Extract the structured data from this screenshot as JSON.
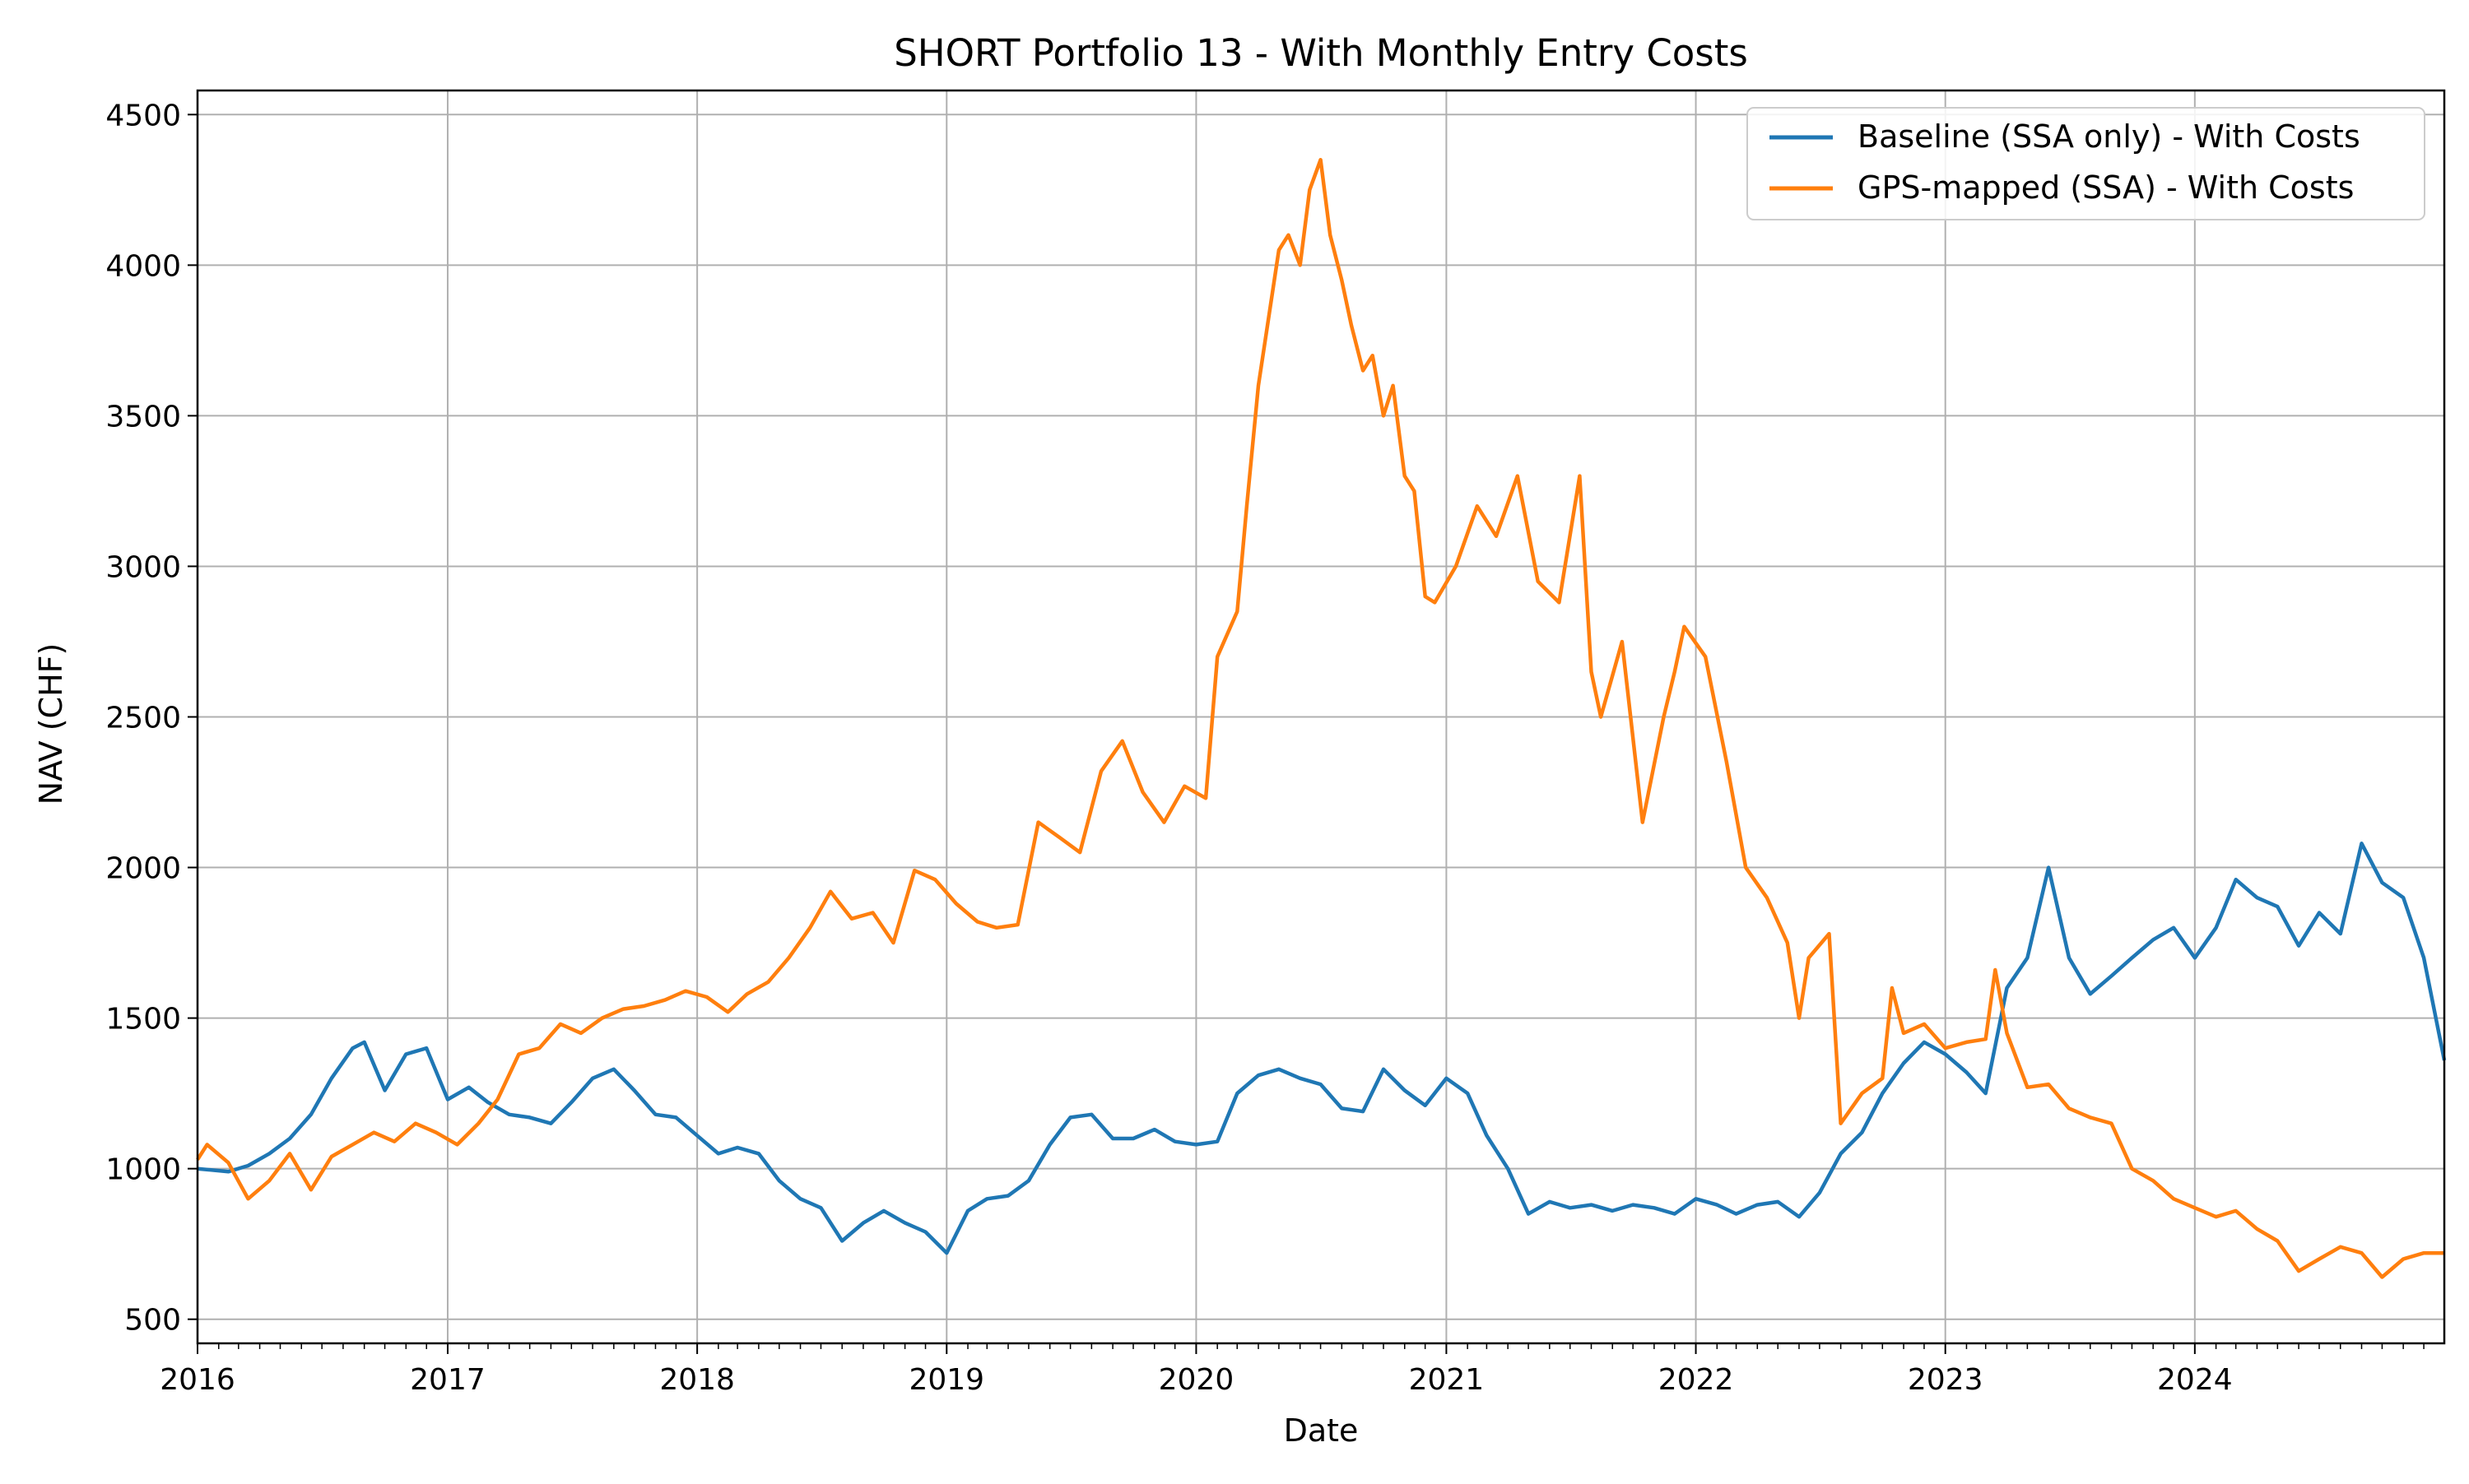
{
  "chart_data": {
    "type": "line",
    "title": "SHORT Portfolio 13 - With Monthly Entry Costs",
    "xlabel": "Date",
    "ylabel": "NAV (CHF)",
    "xlim": [
      "2016-01-01",
      "2024-12-31"
    ],
    "ylim": [
      420,
      4580
    ],
    "x_ticks": [
      "2016",
      "2017",
      "2018",
      "2019",
      "2020",
      "2021",
      "2022",
      "2023",
      "2024"
    ],
    "y_ticks": [
      500,
      1000,
      1500,
      2000,
      2500,
      3000,
      3500,
      4000,
      4500
    ],
    "grid": true,
    "legend_position": "top-right",
    "series": [
      {
        "name": "Baseline (SSA only) - With Costs",
        "color": "#1f77b4",
        "points": [
          [
            "2016-01-01",
            1000
          ],
          [
            "2016-02-15",
            990
          ],
          [
            "2016-03-15",
            1010
          ],
          [
            "2016-04-15",
            1050
          ],
          [
            "2016-05-15",
            1100
          ],
          [
            "2016-06-15",
            1180
          ],
          [
            "2016-07-15",
            1300
          ],
          [
            "2016-08-15",
            1400
          ],
          [
            "2016-09-01",
            1420
          ],
          [
            "2016-10-01",
            1260
          ],
          [
            "2016-11-01",
            1380
          ],
          [
            "2016-12-01",
            1400
          ],
          [
            "2017-01-01",
            1230
          ],
          [
            "2017-02-01",
            1270
          ],
          [
            "2017-03-01",
            1220
          ],
          [
            "2017-04-01",
            1180
          ],
          [
            "2017-05-01",
            1170
          ],
          [
            "2017-06-01",
            1150
          ],
          [
            "2017-07-01",
            1220
          ],
          [
            "2017-08-01",
            1300
          ],
          [
            "2017-09-01",
            1330
          ],
          [
            "2017-10-01",
            1260
          ],
          [
            "2017-11-01",
            1180
          ],
          [
            "2017-12-01",
            1170
          ],
          [
            "2018-01-01",
            1110
          ],
          [
            "2018-02-01",
            1050
          ],
          [
            "2018-03-01",
            1070
          ],
          [
            "2018-04-01",
            1050
          ],
          [
            "2018-05-01",
            960
          ],
          [
            "2018-06-01",
            900
          ],
          [
            "2018-07-01",
            870
          ],
          [
            "2018-08-01",
            760
          ],
          [
            "2018-09-01",
            820
          ],
          [
            "2018-10-01",
            860
          ],
          [
            "2018-11-01",
            820
          ],
          [
            "2018-12-01",
            790
          ],
          [
            "2019-01-01",
            720
          ],
          [
            "2019-02-01",
            860
          ],
          [
            "2019-03-01",
            900
          ],
          [
            "2019-04-01",
            910
          ],
          [
            "2019-05-01",
            960
          ],
          [
            "2019-06-01",
            1080
          ],
          [
            "2019-07-01",
            1170
          ],
          [
            "2019-08-01",
            1180
          ],
          [
            "2019-09-01",
            1100
          ],
          [
            "2019-10-01",
            1100
          ],
          [
            "2019-11-01",
            1130
          ],
          [
            "2019-12-01",
            1090
          ],
          [
            "2020-01-01",
            1080
          ],
          [
            "2020-02-01",
            1090
          ],
          [
            "2020-03-01",
            1250
          ],
          [
            "2020-04-01",
            1310
          ],
          [
            "2020-05-01",
            1330
          ],
          [
            "2020-06-01",
            1300
          ],
          [
            "2020-07-01",
            1280
          ],
          [
            "2020-08-01",
            1200
          ],
          [
            "2020-09-01",
            1190
          ],
          [
            "2020-10-01",
            1330
          ],
          [
            "2020-11-01",
            1260
          ],
          [
            "2020-12-01",
            1210
          ],
          [
            "2021-01-01",
            1300
          ],
          [
            "2021-02-01",
            1250
          ],
          [
            "2021-03-01",
            1110
          ],
          [
            "2021-04-01",
            1000
          ],
          [
            "2021-05-01",
            850
          ],
          [
            "2021-06-01",
            890
          ],
          [
            "2021-07-01",
            870
          ],
          [
            "2021-08-01",
            880
          ],
          [
            "2021-09-01",
            860
          ],
          [
            "2021-10-01",
            880
          ],
          [
            "2021-11-01",
            870
          ],
          [
            "2021-12-01",
            850
          ],
          [
            "2022-01-01",
            900
          ],
          [
            "2022-02-01",
            880
          ],
          [
            "2022-03-01",
            850
          ],
          [
            "2022-04-01",
            880
          ],
          [
            "2022-05-01",
            890
          ],
          [
            "2022-06-01",
            840
          ],
          [
            "2022-07-01",
            920
          ],
          [
            "2022-08-01",
            1050
          ],
          [
            "2022-09-01",
            1120
          ],
          [
            "2022-10-01",
            1250
          ],
          [
            "2022-11-01",
            1350
          ],
          [
            "2022-12-01",
            1420
          ],
          [
            "2023-01-01",
            1380
          ],
          [
            "2023-02-01",
            1320
          ],
          [
            "2023-03-01",
            1250
          ],
          [
            "2023-04-01",
            1600
          ],
          [
            "2023-05-01",
            1700
          ],
          [
            "2023-06-01",
            2000
          ],
          [
            "2023-07-01",
            1700
          ],
          [
            "2023-08-01",
            1580
          ],
          [
            "2023-09-01",
            1640
          ],
          [
            "2023-10-01",
            1700
          ],
          [
            "2023-11-01",
            1760
          ],
          [
            "2023-12-01",
            1800
          ],
          [
            "2024-01-01",
            1700
          ],
          [
            "2024-02-01",
            1800
          ],
          [
            "2024-03-01",
            1960
          ],
          [
            "2024-04-01",
            1900
          ],
          [
            "2024-05-01",
            1870
          ],
          [
            "2024-06-01",
            1740
          ],
          [
            "2024-07-01",
            1850
          ],
          [
            "2024-08-01",
            1780
          ],
          [
            "2024-09-01",
            2080
          ],
          [
            "2024-10-01",
            1950
          ],
          [
            "2024-11-01",
            1900
          ],
          [
            "2024-12-01",
            1700
          ],
          [
            "2024-12-31",
            1360
          ]
        ]
      },
      {
        "name": "GPS-mapped (SSA) - With Costs",
        "color": "#ff7f0e",
        "points": [
          [
            "2016-01-01",
            1030
          ],
          [
            "2016-01-15",
            1080
          ],
          [
            "2016-02-15",
            1020
          ],
          [
            "2016-03-15",
            900
          ],
          [
            "2016-04-15",
            960
          ],
          [
            "2016-05-15",
            1050
          ],
          [
            "2016-06-15",
            930
          ],
          [
            "2016-07-15",
            1040
          ],
          [
            "2016-08-15",
            1080
          ],
          [
            "2016-09-15",
            1120
          ],
          [
            "2016-10-15",
            1090
          ],
          [
            "2016-11-15",
            1150
          ],
          [
            "2016-12-15",
            1120
          ],
          [
            "2017-01-15",
            1080
          ],
          [
            "2017-02-15",
            1150
          ],
          [
            "2017-03-15",
            1230
          ],
          [
            "2017-04-15",
            1380
          ],
          [
            "2017-05-15",
            1400
          ],
          [
            "2017-06-15",
            1480
          ],
          [
            "2017-07-15",
            1450
          ],
          [
            "2017-08-15",
            1500
          ],
          [
            "2017-09-15",
            1530
          ],
          [
            "2017-10-15",
            1540
          ],
          [
            "2017-11-15",
            1560
          ],
          [
            "2017-12-15",
            1590
          ],
          [
            "2018-01-15",
            1570
          ],
          [
            "2018-02-15",
            1520
          ],
          [
            "2018-03-15",
            1580
          ],
          [
            "2018-04-15",
            1620
          ],
          [
            "2018-05-15",
            1700
          ],
          [
            "2018-06-15",
            1800
          ],
          [
            "2018-07-15",
            1920
          ],
          [
            "2018-08-15",
            1830
          ],
          [
            "2018-09-15",
            1850
          ],
          [
            "2018-10-15",
            1750
          ],
          [
            "2018-11-15",
            1990
          ],
          [
            "2018-12-15",
            1960
          ],
          [
            "2019-01-15",
            1880
          ],
          [
            "2019-02-15",
            1820
          ],
          [
            "2019-03-15",
            1800
          ],
          [
            "2019-04-15",
            1810
          ],
          [
            "2019-05-15",
            2150
          ],
          [
            "2019-06-15",
            2100
          ],
          [
            "2019-07-15",
            2050
          ],
          [
            "2019-08-15",
            2320
          ],
          [
            "2019-09-15",
            2420
          ],
          [
            "2019-10-15",
            2250
          ],
          [
            "2019-11-15",
            2150
          ],
          [
            "2019-12-15",
            2270
          ],
          [
            "2020-01-15",
            2230
          ],
          [
            "2020-02-01",
            2700
          ],
          [
            "2020-03-01",
            2850
          ],
          [
            "2020-03-15",
            3200
          ],
          [
            "2020-04-01",
            3600
          ],
          [
            "2020-05-01",
            4050
          ],
          [
            "2020-05-15",
            4100
          ],
          [
            "2020-06-01",
            4000
          ],
          [
            "2020-06-15",
            4250
          ],
          [
            "2020-07-01",
            4350
          ],
          [
            "2020-07-15",
            4100
          ],
          [
            "2020-08-01",
            3950
          ],
          [
            "2020-08-15",
            3800
          ],
          [
            "2020-09-01",
            3650
          ],
          [
            "2020-09-15",
            3700
          ],
          [
            "2020-10-01",
            3500
          ],
          [
            "2020-10-15",
            3600
          ],
          [
            "2020-11-01",
            3300
          ],
          [
            "2020-11-15",
            3250
          ],
          [
            "2020-12-01",
            2900
          ],
          [
            "2020-12-15",
            2880
          ],
          [
            "2021-01-15",
            3000
          ],
          [
            "2021-02-15",
            3200
          ],
          [
            "2021-03-15",
            3100
          ],
          [
            "2021-04-15",
            3300
          ],
          [
            "2021-05-15",
            2950
          ],
          [
            "2021-06-15",
            2880
          ],
          [
            "2021-07-15",
            3300
          ],
          [
            "2021-08-01",
            2650
          ],
          [
            "2021-08-15",
            2500
          ],
          [
            "2021-09-15",
            2750
          ],
          [
            "2021-10-15",
            2150
          ],
          [
            "2021-11-15",
            2500
          ],
          [
            "2021-12-01",
            2650
          ],
          [
            "2021-12-15",
            2800
          ],
          [
            "2022-01-15",
            2700
          ],
          [
            "2022-02-15",
            2350
          ],
          [
            "2022-03-15",
            2000
          ],
          [
            "2022-04-15",
            1900
          ],
          [
            "2022-05-15",
            1750
          ],
          [
            "2022-06-01",
            1500
          ],
          [
            "2022-06-15",
            1700
          ],
          [
            "2022-07-15",
            1780
          ],
          [
            "2022-08-01",
            1150
          ],
          [
            "2022-09-01",
            1250
          ],
          [
            "2022-10-01",
            1300
          ],
          [
            "2022-10-15",
            1600
          ],
          [
            "2022-11-01",
            1450
          ],
          [
            "2022-12-01",
            1480
          ],
          [
            "2023-01-01",
            1400
          ],
          [
            "2023-02-01",
            1420
          ],
          [
            "2023-03-01",
            1430
          ],
          [
            "2023-03-15",
            1660
          ],
          [
            "2023-04-01",
            1450
          ],
          [
            "2023-05-01",
            1270
          ],
          [
            "2023-06-01",
            1280
          ],
          [
            "2023-07-01",
            1200
          ],
          [
            "2023-08-01",
            1170
          ],
          [
            "2023-09-01",
            1150
          ],
          [
            "2023-10-01",
            1000
          ],
          [
            "2023-11-01",
            960
          ],
          [
            "2023-12-01",
            900
          ],
          [
            "2024-01-01",
            870
          ],
          [
            "2024-02-01",
            840
          ],
          [
            "2024-03-01",
            860
          ],
          [
            "2024-04-01",
            800
          ],
          [
            "2024-05-01",
            760
          ],
          [
            "2024-06-01",
            660
          ],
          [
            "2024-07-01",
            700
          ],
          [
            "2024-08-01",
            740
          ],
          [
            "2024-09-01",
            720
          ],
          [
            "2024-10-01",
            640
          ],
          [
            "2024-11-01",
            700
          ],
          [
            "2024-12-01",
            720
          ],
          [
            "2024-12-31",
            720
          ]
        ]
      }
    ]
  }
}
